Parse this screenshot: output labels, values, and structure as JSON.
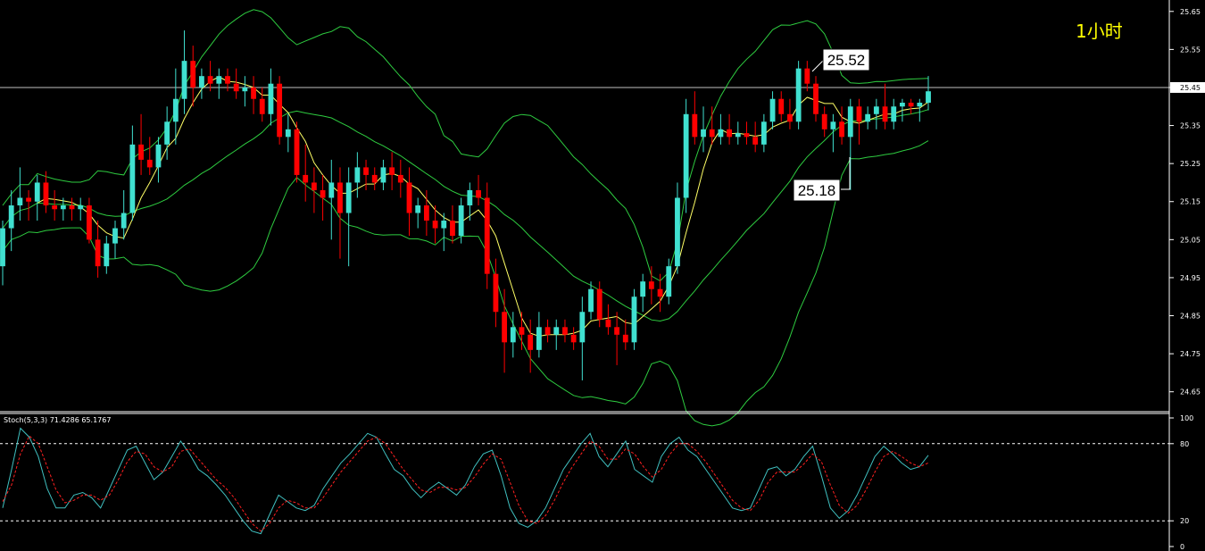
{
  "timeframe_label": "1小时",
  "price_axis": {
    "ticks": [
      "25.65",
      "25.55",
      "25.45",
      "25.35",
      "25.25",
      "25.15",
      "25.05",
      "24.95",
      "24.85",
      "24.75",
      "24.65"
    ],
    "current_price_label": "25.45"
  },
  "annotations": {
    "high_label": "25.52",
    "low_label": "25.18"
  },
  "stoch": {
    "title": "Stoch(5,3,3) 71.4286 65.1767",
    "ticks": [
      "100",
      "80",
      "20",
      "0"
    ]
  },
  "colors": {
    "bull": "#40e0d0",
    "bear": "#ff0000",
    "bands": "#2ecc40",
    "ma": "#ffff66",
    "stoch_main": "#40c0c0",
    "stoch_signal": "#ff2020",
    "grid_line": "#c0c0c0"
  },
  "chart_data": [
    {
      "type": "candlestick",
      "title": "",
      "ylim": [
        24.6,
        25.68
      ],
      "indicators": [
        "Bollinger Bands",
        "Moving Average"
      ],
      "last_price": 25.45,
      "ohlc": [
        [
          24.98,
          25.1,
          24.93,
          25.08
        ],
        [
          25.08,
          25.18,
          25.02,
          25.14
        ],
        [
          25.14,
          25.24,
          25.1,
          25.16
        ],
        [
          25.16,
          25.18,
          25.1,
          25.15
        ],
        [
          25.15,
          25.22,
          25.1,
          25.2
        ],
        [
          25.2,
          25.23,
          25.12,
          25.14
        ],
        [
          25.14,
          25.18,
          25.1,
          25.13
        ],
        [
          25.13,
          25.16,
          25.1,
          25.14
        ],
        [
          25.14,
          25.16,
          25.1,
          25.13
        ],
        [
          25.13,
          25.16,
          25.1,
          25.14
        ],
        [
          25.14,
          25.16,
          25.04,
          25.05
        ],
        [
          25.05,
          25.1,
          24.95,
          24.98
        ],
        [
          24.98,
          25.06,
          24.96,
          25.04
        ],
        [
          25.04,
          25.1,
          25.0,
          25.08
        ],
        [
          25.08,
          25.18,
          25.05,
          25.12
        ],
        [
          25.12,
          25.35,
          25.1,
          25.3
        ],
        [
          25.3,
          25.38,
          25.22,
          25.26
        ],
        [
          25.26,
          25.32,
          25.22,
          25.24
        ],
        [
          25.24,
          25.32,
          25.2,
          25.3
        ],
        [
          25.3,
          25.4,
          25.26,
          25.36
        ],
        [
          25.36,
          25.5,
          25.3,
          25.42
        ],
        [
          25.42,
          25.6,
          25.38,
          25.52
        ],
        [
          25.52,
          25.56,
          25.4,
          25.45
        ],
        [
          25.45,
          25.5,
          25.42,
          25.48
        ],
        [
          25.48,
          25.52,
          25.44,
          25.46
        ],
        [
          25.46,
          25.5,
          25.42,
          25.48
        ],
        [
          25.48,
          25.5,
          25.44,
          25.46
        ],
        [
          25.46,
          25.5,
          25.42,
          25.44
        ],
        [
          25.44,
          25.48,
          25.4,
          25.45
        ],
        [
          25.45,
          25.48,
          25.38,
          25.42
        ],
        [
          25.42,
          25.45,
          25.36,
          25.38
        ],
        [
          25.38,
          25.5,
          25.35,
          25.46
        ],
        [
          25.46,
          25.48,
          25.3,
          25.32
        ],
        [
          25.32,
          25.38,
          25.28,
          25.34
        ],
        [
          25.34,
          25.36,
          25.2,
          25.22
        ],
        [
          25.22,
          25.3,
          25.15,
          25.2
        ],
        [
          25.2,
          25.24,
          25.12,
          25.18
        ],
        [
          25.18,
          25.22,
          25.1,
          25.16
        ],
        [
          25.16,
          25.26,
          25.05,
          25.2
        ],
        [
          25.2,
          25.24,
          25.0,
          25.12
        ],
        [
          25.12,
          25.24,
          24.98,
          25.2
        ],
        [
          25.2,
          25.28,
          25.16,
          25.24
        ],
        [
          25.24,
          25.26,
          25.18,
          25.22
        ],
        [
          25.22,
          25.24,
          25.18,
          25.2
        ],
        [
          25.2,
          25.26,
          25.18,
          25.24
        ],
        [
          25.24,
          25.28,
          25.18,
          25.22
        ],
        [
          25.22,
          25.26,
          25.16,
          25.2
        ],
        [
          25.2,
          25.24,
          25.06,
          25.12
        ],
        [
          25.12,
          25.16,
          25.08,
          25.14
        ],
        [
          25.14,
          25.18,
          25.06,
          25.1
        ],
        [
          25.1,
          25.14,
          25.04,
          25.08
        ],
        [
          25.08,
          25.12,
          25.02,
          25.1
        ],
        [
          25.1,
          25.14,
          25.04,
          25.06
        ],
        [
          25.06,
          25.16,
          25.04,
          25.14
        ],
        [
          25.14,
          25.2,
          25.1,
          25.18
        ],
        [
          25.18,
          25.22,
          25.14,
          25.16
        ],
        [
          25.16,
          25.2,
          24.92,
          24.96
        ],
        [
          24.96,
          25.0,
          24.82,
          24.86
        ],
        [
          24.86,
          24.92,
          24.7,
          24.78
        ],
        [
          24.78,
          24.86,
          24.74,
          24.82
        ],
        [
          24.82,
          24.86,
          24.76,
          24.8
        ],
        [
          24.8,
          24.84,
          24.7,
          24.76
        ],
        [
          24.76,
          24.86,
          24.74,
          24.82
        ],
        [
          24.82,
          24.84,
          24.78,
          24.8
        ],
        [
          24.8,
          24.84,
          24.76,
          24.82
        ],
        [
          24.82,
          24.84,
          24.78,
          24.8
        ],
        [
          24.8,
          24.82,
          24.76,
          24.78
        ],
        [
          24.78,
          24.9,
          24.68,
          24.86
        ],
        [
          24.86,
          24.94,
          24.84,
          24.92
        ],
        [
          24.92,
          24.94,
          24.82,
          24.84
        ],
        [
          24.84,
          24.88,
          24.8,
          24.82
        ],
        [
          24.82,
          24.86,
          24.72,
          24.8
        ],
        [
          24.8,
          24.84,
          24.76,
          24.78
        ],
        [
          24.78,
          24.92,
          24.76,
          24.9
        ],
        [
          24.9,
          24.96,
          24.86,
          24.94
        ],
        [
          24.94,
          24.98,
          24.88,
          24.92
        ],
        [
          24.92,
          24.96,
          24.86,
          24.9
        ],
        [
          24.9,
          25.0,
          24.88,
          24.98
        ],
        [
          24.98,
          25.2,
          24.96,
          25.16
        ],
        [
          25.16,
          25.42,
          25.12,
          25.38
        ],
        [
          25.38,
          25.44,
          25.3,
          25.32
        ],
        [
          25.32,
          25.4,
          25.28,
          25.34
        ],
        [
          25.34,
          25.4,
          25.3,
          25.32
        ],
        [
          25.32,
          25.38,
          25.3,
          25.34
        ],
        [
          25.34,
          25.38,
          25.3,
          25.32
        ],
        [
          25.32,
          25.36,
          25.3,
          25.33
        ],
        [
          25.33,
          25.36,
          25.3,
          25.32
        ],
        [
          25.32,
          25.36,
          25.28,
          25.3
        ],
        [
          25.3,
          25.38,
          25.28,
          25.36
        ],
        [
          25.36,
          25.44,
          25.34,
          25.42
        ],
        [
          25.42,
          25.44,
          25.36,
          25.38
        ],
        [
          25.38,
          25.42,
          25.34,
          25.36
        ],
        [
          25.36,
          25.52,
          25.34,
          25.5
        ],
        [
          25.5,
          25.52,
          25.44,
          25.46
        ],
        [
          25.46,
          25.48,
          25.36,
          25.38
        ],
        [
          25.38,
          25.4,
          25.32,
          25.34
        ],
        [
          25.34,
          25.38,
          25.28,
          25.36
        ],
        [
          25.36,
          25.4,
          25.3,
          25.32
        ],
        [
          25.32,
          25.42,
          25.18,
          25.4
        ],
        [
          25.4,
          25.42,
          25.3,
          25.36
        ],
        [
          25.36,
          25.4,
          25.34,
          25.38
        ],
        [
          25.38,
          25.42,
          25.34,
          25.4
        ],
        [
          25.4,
          25.46,
          25.34,
          25.36
        ],
        [
          25.36,
          25.42,
          25.34,
          25.4
        ],
        [
          25.4,
          25.42,
          25.36,
          25.41
        ],
        [
          25.41,
          25.42,
          25.38,
          25.4
        ],
        [
          25.4,
          25.42,
          25.36,
          25.41
        ],
        [
          25.41,
          25.48,
          25.39,
          25.44
        ]
      ]
    },
    {
      "type": "line",
      "title": "Stoch(5,3,3) 71.4286 65.1767",
      "ylim": [
        0,
        100
      ],
      "levels": [
        80,
        20
      ],
      "series": [
        {
          "name": "%K",
          "values": [
            30,
            60,
            92,
            85,
            70,
            45,
            30,
            30,
            40,
            42,
            38,
            30,
            45,
            60,
            75,
            78,
            65,
            52,
            58,
            70,
            82,
            72,
            60,
            55,
            48,
            40,
            30,
            20,
            12,
            10,
            25,
            40,
            35,
            30,
            28,
            32,
            45,
            55,
            65,
            72,
            80,
            88,
            85,
            72,
            60,
            55,
            45,
            38,
            45,
            50,
            45,
            40,
            48,
            62,
            72,
            75,
            55,
            30,
            18,
            15,
            20,
            30,
            45,
            60,
            70,
            80,
            88,
            70,
            62,
            72,
            82,
            60,
            55,
            50,
            70,
            80,
            85,
            75,
            70,
            60,
            50,
            40,
            30,
            28,
            30,
            45,
            60,
            62,
            55,
            60,
            70,
            78,
            55,
            30,
            22,
            28,
            40,
            55,
            70,
            78,
            72,
            65,
            60,
            62,
            71
          ]
        },
        {
          "name": "%D",
          "values": [
            35,
            48,
            72,
            86,
            80,
            62,
            44,
            34,
            36,
            40,
            40,
            36,
            40,
            52,
            66,
            74,
            72,
            62,
            58,
            62,
            74,
            76,
            68,
            60,
            52,
            46,
            38,
            28,
            18,
            12,
            18,
            30,
            36,
            34,
            30,
            30,
            38,
            48,
            58,
            66,
            74,
            82,
            85,
            80,
            70,
            60,
            52,
            44,
            42,
            46,
            46,
            44,
            46,
            54,
            64,
            72,
            68,
            50,
            32,
            20,
            18,
            24,
            36,
            50,
            62,
            72,
            82,
            78,
            68,
            68,
            76,
            72,
            62,
            54,
            60,
            72,
            80,
            80,
            74,
            66,
            56,
            46,
            36,
            30,
            28,
            36,
            50,
            58,
            58,
            58,
            64,
            72,
            66,
            48,
            32,
            26,
            32,
            44,
            58,
            70,
            74,
            70,
            65,
            62,
            65
          ]
        }
      ]
    }
  ]
}
